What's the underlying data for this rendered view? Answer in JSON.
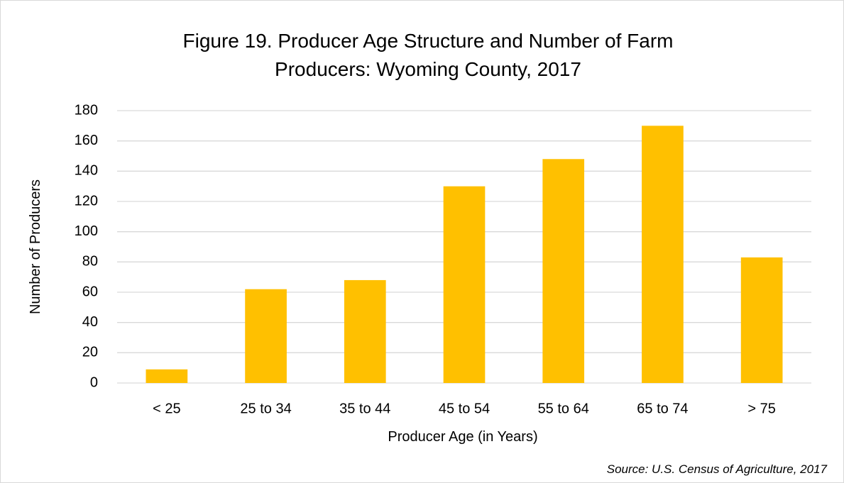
{
  "chart_data": {
    "type": "bar",
    "title": "Figure 19. Producer Age Structure and Number of Farm Producers: Wyoming County, 2017",
    "x_label": "Producer Age (in Years)",
    "y_label": "Number of Producers",
    "source": "Source: U.S. Census of Agriculture, 2017",
    "categories": [
      "< 25",
      "25 to 34",
      "35 to 44",
      "45 to 54",
      "55 to 64",
      "65 to 74",
      "> 75"
    ],
    "values": [
      9,
      62,
      68,
      130,
      148,
      170,
      83
    ],
    "color": "#ffc000",
    "ylim": [
      0,
      180
    ],
    "yticks": [
      0,
      20,
      40,
      60,
      80,
      100,
      120,
      140,
      160,
      180
    ],
    "grid": true
  }
}
